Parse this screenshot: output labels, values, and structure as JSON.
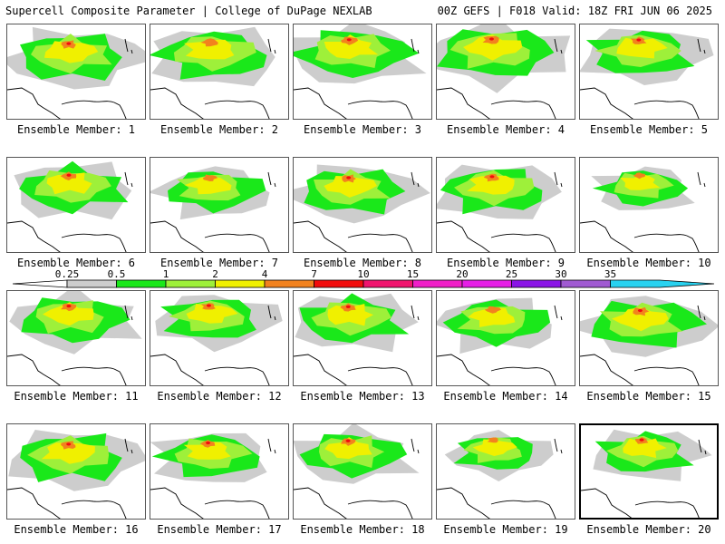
{
  "header": {
    "left": "Supercell Composite Parameter | College of DuPage NEXLAB",
    "right": "00Z GEFS | F018 Valid: 18Z FRI JUN 06 2025"
  },
  "caption_prefix": "Ensemble Member: ",
  "selected_member": 20,
  "members": [
    {
      "id": 1,
      "label": "1",
      "intensity": 0.85,
      "red": true
    },
    {
      "id": 2,
      "label": "2",
      "intensity": 0.85,
      "red": false
    },
    {
      "id": 3,
      "label": "3",
      "intensity": 0.85,
      "red": true
    },
    {
      "id": 4,
      "label": "4",
      "intensity": 0.9,
      "red": true
    },
    {
      "id": 5,
      "label": "5",
      "intensity": 0.8,
      "red": true
    },
    {
      "id": 6,
      "label": "6",
      "intensity": 0.8,
      "red": true
    },
    {
      "id": 7,
      "label": "7",
      "intensity": 0.7,
      "red": false
    },
    {
      "id": 8,
      "label": "8",
      "intensity": 0.8,
      "red": true
    },
    {
      "id": 9,
      "label": "9",
      "intensity": 0.8,
      "red": true
    },
    {
      "id": 10,
      "label": "10",
      "intensity": 0.6,
      "red": false
    },
    {
      "id": 11,
      "label": "11",
      "intensity": 0.8,
      "red": true
    },
    {
      "id": 12,
      "label": "12",
      "intensity": 0.75,
      "red": true
    },
    {
      "id": 13,
      "label": "13",
      "intensity": 0.8,
      "red": true
    },
    {
      "id": 14,
      "label": "14",
      "intensity": 0.75,
      "red": false
    },
    {
      "id": 15,
      "label": "15",
      "intensity": 0.85,
      "red": true
    },
    {
      "id": 16,
      "label": "16",
      "intensity": 0.85,
      "red": true
    },
    {
      "id": 17,
      "label": "17",
      "intensity": 0.75,
      "red": true
    },
    {
      "id": 18,
      "label": "18",
      "intensity": 0.75,
      "red": true
    },
    {
      "id": 19,
      "label": "19",
      "intensity": 0.6,
      "red": false
    },
    {
      "id": 20,
      "label": "20",
      "intensity": 0.7,
      "red": true
    }
  ],
  "scale": {
    "bins": [
      {
        "label": "0.25",
        "color": "#cdcdcd"
      },
      {
        "label": "0.5",
        "color": "#1ae81a"
      },
      {
        "label": "1",
        "color": "#9ef03a"
      },
      {
        "label": "2",
        "color": "#f0f000"
      },
      {
        "label": "4",
        "color": "#f2821e"
      },
      {
        "label": "7",
        "color": "#f20c0c"
      },
      {
        "label": "10",
        "color": "#f0146e"
      },
      {
        "label": "15",
        "color": "#f01ec8"
      },
      {
        "label": "20",
        "color": "#e61ee6"
      },
      {
        "label": "25",
        "color": "#8a14e6"
      },
      {
        "label": "30",
        "color": "#a05ad2"
      },
      {
        "label": "35",
        "color": "#28d2f0"
      }
    ]
  },
  "colors": {
    "gray": "#cdcdcd",
    "green": "#1ae81a",
    "lightgreen": "#9ef03a",
    "yellow": "#f0f000",
    "orange": "#f2821e",
    "red": "#f20c0c",
    "border": "#000000"
  }
}
